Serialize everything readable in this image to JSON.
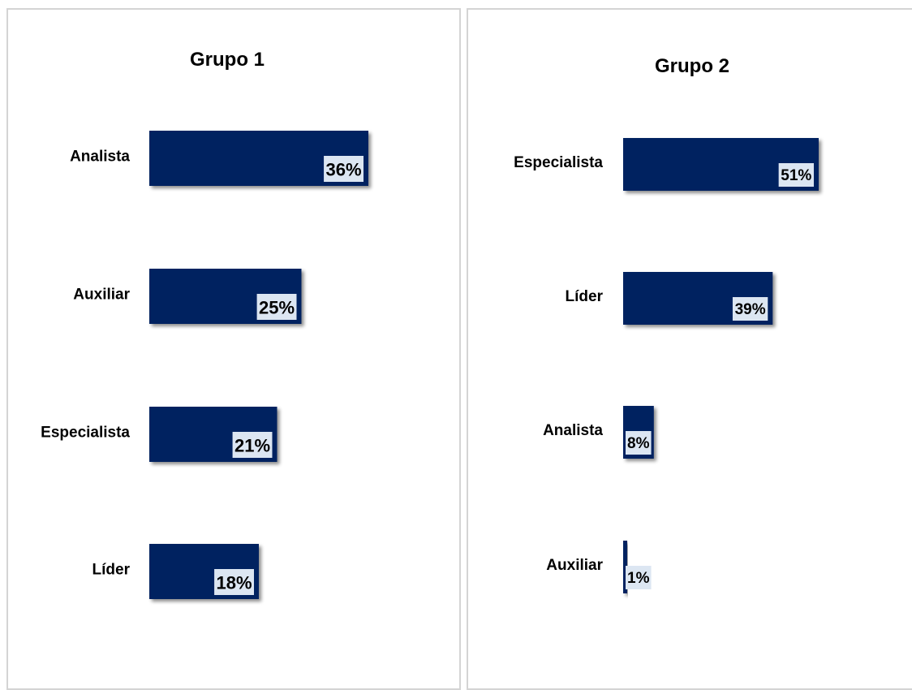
{
  "chart_data": [
    {
      "type": "bar",
      "orientation": "horizontal",
      "title": "Grupo 1",
      "categories": [
        "Analista",
        "Auxiliar",
        "Especialista",
        "Líder"
      ],
      "values": [
        36,
        25,
        21,
        18
      ],
      "value_labels": [
        "36%",
        "25%",
        "21%",
        "18%"
      ],
      "unit": "%",
      "xlim": [
        0,
        64
      ],
      "grid": false,
      "legend": "none",
      "bar_color": "#002060",
      "label_box_color": "#dce6f2"
    },
    {
      "type": "bar",
      "orientation": "horizontal",
      "title": "Grupo 2",
      "categories": [
        "Especialista",
        "Líder",
        "Analista",
        "Auxiliar"
      ],
      "values": [
        51,
        39,
        8,
        1
      ],
      "value_labels": [
        "51%",
        "39%",
        "8%",
        "1%"
      ],
      "unit": "%",
      "xlim": [
        0,
        91
      ],
      "grid": false,
      "legend": "none",
      "bar_color": "#002060",
      "label_box_color": "#dce6f2"
    }
  ]
}
